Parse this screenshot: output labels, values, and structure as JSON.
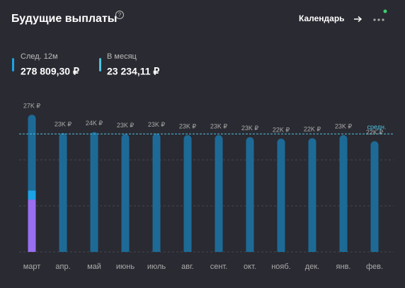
{
  "header": {
    "title": "Будущие выплаты",
    "link": "Календарь"
  },
  "stats": [
    {
      "label": "След. 12м",
      "value": "278 809,30 ₽"
    },
    {
      "label": "В месяц",
      "value": "23 234,11 ₽"
    }
  ],
  "chart_data": {
    "type": "stacked_bar",
    "categories": [
      "март",
      "апр.",
      "май",
      "июнь",
      "июль",
      "авг.",
      "сент.",
      "окт.",
      "нояб.",
      "дек.",
      "янв.",
      "фев."
    ],
    "series": [
      {
        "color": "#9a6ef0",
        "values": [
          10300,
          null,
          null,
          null,
          null,
          null,
          null,
          null,
          null,
          null,
          null,
          null
        ]
      },
      {
        "color": "#1ba3e6",
        "values": [
          1800,
          null,
          null,
          null,
          null,
          null,
          null,
          null,
          null,
          null,
          null,
          null
        ]
      },
      {
        "color": "#1d6a96",
        "values": [
          14900,
          23400,
          23600,
          23200,
          23300,
          23000,
          23000,
          22600,
          22300,
          22400,
          23000,
          21800
        ]
      }
    ],
    "total_labels": [
      "27K ₽",
      "23K ₽",
      "24K ₽",
      "23K ₽",
      "23K ₽",
      "23K ₽",
      "23K ₽",
      "23K ₽",
      "22K ₽",
      "22K ₽",
      "23K ₽",
      "22K ₽"
    ],
    "average": 23234.11,
    "average_label": "средн.",
    "average_color": "#4fc3e0",
    "ylim": [
      0,
      28000
    ]
  }
}
